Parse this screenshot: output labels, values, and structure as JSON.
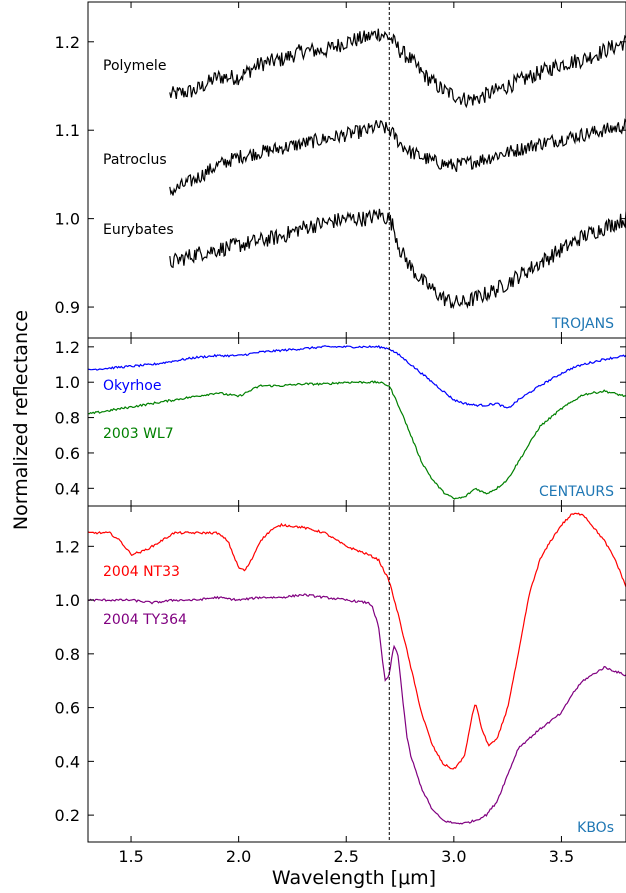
{
  "chart_data": {
    "type": "line",
    "xlabel": "Wavelength [μm]",
    "ylabel": "Normalized reflectance",
    "xlim": [
      1.3,
      3.8
    ],
    "x_ticks": [
      1.5,
      2.0,
      2.5,
      3.0,
      3.5
    ],
    "x_tick_labels": [
      "1.5",
      "2.0",
      "2.5",
      "3.0",
      "3.5"
    ],
    "vline_x": 2.7,
    "panels": [
      {
        "group": "TROJANS",
        "group_color": "#1f77b4",
        "ylim": [
          0.865,
          1.245
        ],
        "y_ticks": [
          0.9,
          1.0,
          1.1,
          1.2
        ],
        "y_tick_labels": [
          "0.9",
          "1.0",
          "1.1",
          "1.2"
        ],
        "series": [
          {
            "name": "Polymele",
            "color": "#000000",
            "noise": 0.009,
            "x": [
              1.68,
              1.8,
              1.9,
              2.0,
              2.1,
              2.2,
              2.3,
              2.4,
              2.5,
              2.6,
              2.65,
              2.7,
              2.72,
              2.75,
              2.8,
              2.85,
              2.9,
              2.95,
              3.0,
              3.05,
              3.1,
              3.15,
              3.2,
              3.3,
              3.4,
              3.5,
              3.6,
              3.7,
              3.8
            ],
            "y": [
              1.14,
              1.145,
              1.16,
              1.16,
              1.175,
              1.18,
              1.19,
              1.19,
              1.2,
              1.205,
              1.21,
              1.205,
              1.2,
              1.19,
              1.18,
              1.165,
              1.155,
              1.145,
              1.14,
              1.135,
              1.135,
              1.14,
              1.145,
              1.155,
              1.165,
              1.175,
              1.18,
              1.19,
              1.2
            ]
          },
          {
            "name": "Patroclus",
            "color": "#000000",
            "noise": 0.008,
            "x": [
              1.68,
              1.8,
              1.9,
              2.0,
              2.1,
              2.2,
              2.3,
              2.4,
              2.5,
              2.6,
              2.65,
              2.7,
              2.72,
              2.75,
              2.8,
              2.85,
              2.9,
              2.95,
              3.0,
              3.05,
              3.1,
              3.15,
              3.2,
              3.3,
              3.4,
              3.5,
              3.6,
              3.7,
              3.8
            ],
            "y": [
              1.03,
              1.045,
              1.06,
              1.07,
              1.075,
              1.08,
              1.085,
              1.09,
              1.095,
              1.1,
              1.105,
              1.1,
              1.095,
              1.085,
              1.075,
              1.07,
              1.065,
              1.062,
              1.06,
              1.062,
              1.065,
              1.068,
              1.072,
              1.078,
              1.085,
              1.09,
              1.095,
              1.1,
              1.105
            ]
          },
          {
            "name": "Eurybates",
            "color": "#000000",
            "noise": 0.009,
            "x": [
              1.68,
              1.8,
              1.9,
              2.0,
              2.1,
              2.2,
              2.3,
              2.4,
              2.5,
              2.6,
              2.65,
              2.7,
              2.72,
              2.75,
              2.8,
              2.85,
              2.9,
              2.95,
              3.0,
              3.05,
              3.1,
              3.15,
              3.2,
              3.3,
              3.4,
              3.5,
              3.6,
              3.7,
              3.8
            ],
            "y": [
              0.95,
              0.96,
              0.965,
              0.97,
              0.975,
              0.98,
              0.99,
              0.995,
              1.0,
              1.0,
              1.005,
              1.0,
              0.99,
              0.965,
              0.945,
              0.93,
              0.92,
              0.91,
              0.905,
              0.905,
              0.91,
              0.915,
              0.92,
              0.935,
              0.95,
              0.965,
              0.98,
              0.99,
              1.0
            ]
          }
        ]
      },
      {
        "group": "CENTAURS",
        "group_color": "#1f77b4",
        "ylim": [
          0.3,
          1.25
        ],
        "y_ticks": [
          0.4,
          0.6,
          0.8,
          1.0,
          1.2
        ],
        "y_tick_labels": [
          "0.4",
          "0.6",
          "0.8",
          "1.0",
          "1.2"
        ],
        "series": [
          {
            "name": "Okyrhoe",
            "color": "#0000ff",
            "noise": 0.006,
            "x": [
              1.3,
              1.4,
              1.5,
              1.6,
              1.7,
              1.8,
              1.9,
              2.0,
              2.1,
              2.2,
              2.3,
              2.4,
              2.5,
              2.6,
              2.65,
              2.7,
              2.75,
              2.8,
              2.85,
              2.9,
              2.95,
              3.0,
              3.05,
              3.1,
              3.15,
              3.2,
              3.25,
              3.3,
              3.4,
              3.5,
              3.55,
              3.6,
              3.7,
              3.8
            ],
            "y": [
              1.07,
              1.08,
              1.09,
              1.1,
              1.12,
              1.14,
              1.15,
              1.15,
              1.17,
              1.18,
              1.19,
              1.2,
              1.2,
              1.2,
              1.2,
              1.19,
              1.15,
              1.1,
              1.05,
              1.0,
              0.95,
              0.9,
              0.88,
              0.87,
              0.87,
              0.88,
              0.85,
              0.9,
              0.98,
              1.05,
              1.08,
              1.1,
              1.13,
              1.15
            ]
          },
          {
            "name": "2003 WL7",
            "color": "#008000",
            "noise": 0.006,
            "x": [
              1.3,
              1.4,
              1.5,
              1.6,
              1.7,
              1.8,
              1.9,
              2.0,
              2.1,
              2.2,
              2.3,
              2.4,
              2.5,
              2.6,
              2.65,
              2.7,
              2.75,
              2.8,
              2.85,
              2.9,
              2.95,
              3.0,
              3.05,
              3.1,
              3.15,
              3.2,
              3.25,
              3.3,
              3.4,
              3.5,
              3.6,
              3.7,
              3.8
            ],
            "y": [
              0.82,
              0.84,
              0.86,
              0.88,
              0.9,
              0.92,
              0.94,
              0.92,
              0.98,
              0.98,
              0.99,
              0.99,
              1.0,
              1.0,
              1.0,
              0.98,
              0.85,
              0.7,
              0.55,
              0.45,
              0.38,
              0.34,
              0.35,
              0.4,
              0.37,
              0.4,
              0.45,
              0.55,
              0.75,
              0.85,
              0.93,
              0.95,
              0.92
            ]
          }
        ]
      },
      {
        "group": "KBOs",
        "group_color": "#1f77b4",
        "ylim": [
          0.1,
          1.35
        ],
        "y_ticks": [
          0.2,
          0.4,
          0.6,
          0.8,
          1.0,
          1.2
        ],
        "y_tick_labels": [
          "0.2",
          "0.4",
          "0.6",
          "0.8",
          "1.0",
          "1.2"
        ],
        "series": [
          {
            "name": "2004 NT33",
            "color": "#ff0000",
            "noise": 0.004,
            "x": [
              1.3,
              1.4,
              1.45,
              1.5,
              1.55,
              1.6,
              1.7,
              1.8,
              1.9,
              1.95,
              2.0,
              2.03,
              2.06,
              2.1,
              2.15,
              2.2,
              2.3,
              2.4,
              2.5,
              2.6,
              2.65,
              2.7,
              2.75,
              2.8,
              2.85,
              2.9,
              2.95,
              3.0,
              3.05,
              3.08,
              3.1,
              3.13,
              3.16,
              3.2,
              3.25,
              3.3,
              3.35,
              3.4,
              3.45,
              3.5,
              3.55,
              3.6,
              3.7,
              3.75,
              3.8
            ],
            "y": [
              1.25,
              1.25,
              1.22,
              1.17,
              1.18,
              1.2,
              1.25,
              1.25,
              1.25,
              1.22,
              1.12,
              1.11,
              1.15,
              1.22,
              1.26,
              1.28,
              1.27,
              1.25,
              1.2,
              1.17,
              1.15,
              1.07,
              0.92,
              0.75,
              0.58,
              0.46,
              0.39,
              0.37,
              0.42,
              0.55,
              0.62,
              0.52,
              0.46,
              0.48,
              0.6,
              0.8,
              1.02,
              1.15,
              1.22,
              1.28,
              1.32,
              1.32,
              1.22,
              1.15,
              1.05
            ]
          },
          {
            "name": "2004 TY364",
            "color": "#800080",
            "noise": 0.004,
            "x": [
              1.3,
              1.4,
              1.5,
              1.6,
              1.7,
              1.8,
              1.9,
              2.0,
              2.1,
              2.2,
              2.3,
              2.4,
              2.5,
              2.6,
              2.62,
              2.65,
              2.68,
              2.7,
              2.72,
              2.74,
              2.76,
              2.78,
              2.8,
              2.85,
              2.9,
              2.95,
              3.0,
              3.05,
              3.1,
              3.15,
              3.2,
              3.25,
              3.3,
              3.4,
              3.5,
              3.55,
              3.6,
              3.7,
              3.8
            ],
            "y": [
              1.0,
              1.0,
              1.0,
              0.99,
              1.0,
              1.0,
              1.01,
              1.0,
              1.01,
              1.01,
              1.02,
              1.01,
              1.0,
              0.99,
              0.98,
              0.9,
              0.7,
              0.72,
              0.83,
              0.8,
              0.65,
              0.5,
              0.42,
              0.3,
              0.22,
              0.18,
              0.17,
              0.17,
              0.18,
              0.2,
              0.25,
              0.35,
              0.45,
              0.52,
              0.58,
              0.65,
              0.7,
              0.75,
              0.72
            ]
          }
        ]
      }
    ]
  }
}
